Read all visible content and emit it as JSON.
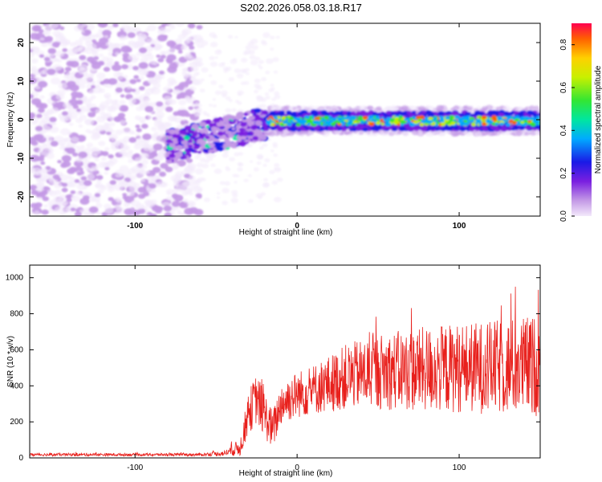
{
  "title": "S202.2026.058.03.18.R17",
  "chart_data": [
    {
      "type": "heatmap",
      "xlabel": "Height of straight line (km)",
      "ylabel": "Frequency (Hz)",
      "xlim": [
        -165,
        150
      ],
      "ylim": [
        -25,
        25
      ],
      "xticks": [
        -100,
        0,
        100
      ],
      "yticks": [
        -20,
        -10,
        0,
        10,
        20
      ],
      "colorbar": {
        "label": "Normalized spectral amplitude",
        "range": [
          0.0,
          0.9
        ],
        "ticks": [
          0.0,
          0.2,
          0.4,
          0.6,
          0.8
        ]
      },
      "ridge_description": "noise below -80 km, rising signal from -80 to -20 km, flat strong band near 0 Hz from -20 to 150 km"
    },
    {
      "type": "line",
      "xlabel": "Height of straight line (km)",
      "ylabel": "SNR (10 * v/v)",
      "xlim": [
        -165,
        150
      ],
      "ylim": [
        0,
        1070
      ],
      "xticks": [
        -100,
        0,
        100
      ],
      "yticks": [
        0,
        200,
        400,
        600,
        800,
        1000
      ],
      "color": "#e8201c",
      "envelope": {
        "x": [
          -165,
          -60,
          -45,
          -35,
          -30,
          -25,
          -20,
          -15,
          -10,
          -5,
          0,
          10,
          20,
          30,
          50,
          80,
          100,
          120,
          140,
          150
        ],
        "mean": [
          18,
          18,
          25,
          60,
          250,
          330,
          240,
          150,
          300,
          330,
          350,
          380,
          410,
          450,
          480,
          490,
          500,
          500,
          510,
          510
        ],
        "spread": [
          8,
          8,
          15,
          50,
          120,
          140,
          130,
          110,
          120,
          130,
          130,
          140,
          160,
          180,
          210,
          240,
          250,
          260,
          280,
          280
        ]
      }
    }
  ]
}
